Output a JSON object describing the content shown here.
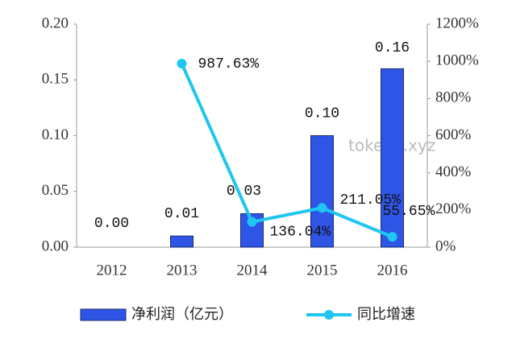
{
  "chart_data": {
    "type": "bar-line",
    "categories": [
      "2012",
      "2013",
      "2014",
      "2015",
      "2016"
    ],
    "series": [
      {
        "name": "净利润（亿元）",
        "type": "bar",
        "color": "#2f55e6",
        "values": [
          0.0,
          0.01,
          0.03,
          0.1,
          0.16
        ],
        "value_labels": [
          "0.00",
          "0.01",
          "0.03",
          "0.10",
          "0.16"
        ]
      },
      {
        "name": "同比增速",
        "type": "line",
        "axis": "y2",
        "color": "#1ec6f0",
        "values": [
          null,
          987.63,
          136.04,
          211.05,
          55.65
        ],
        "value_labels": [
          null,
          "987.63%",
          "136.04%",
          "211.05%",
          "55.65%"
        ]
      }
    ],
    "ylim": [
      0,
      0.2
    ],
    "yticks": [
      {
        "value": 0,
        "label": "0.00"
      },
      {
        "value": 0.05,
        "label": "0.05"
      },
      {
        "value": 0.1,
        "label": "0.10"
      },
      {
        "value": 0.15,
        "label": "0.15"
      },
      {
        "value": 0.2,
        "label": "0.20"
      }
    ],
    "y2lim": [
      0,
      1200
    ],
    "y2ticks": [
      {
        "value": 0,
        "label": "0%"
      },
      {
        "value": 200,
        "label": "200%"
      },
      {
        "value": 400,
        "label": "400%"
      },
      {
        "value": 600,
        "label": "600%"
      },
      {
        "value": 800,
        "label": "800%"
      },
      {
        "value": 1000,
        "label": "1000%"
      },
      {
        "value": 1200,
        "label": "1200%"
      }
    ],
    "legend": "bottom",
    "watermark": "tokenx.xyz"
  }
}
